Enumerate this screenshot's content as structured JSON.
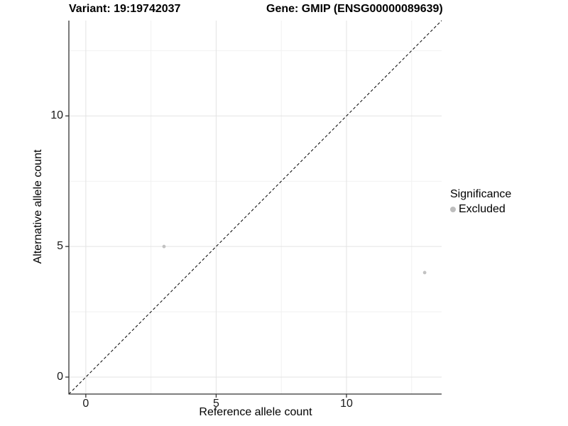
{
  "chart_data": {
    "type": "scatter",
    "title_left": "Variant: 19:19742037",
    "title_right": "Gene: GMIP (ENSG00000089639)",
    "xlabel": "Reference allele count",
    "ylabel": "Alternative allele count",
    "xlim": [
      -0.65,
      13.65
    ],
    "ylim": [
      -0.65,
      13.65
    ],
    "x_ticks": [
      0,
      5,
      10
    ],
    "y_ticks": [
      0,
      5,
      10
    ],
    "x_minor_ticks": [
      2.5,
      7.5,
      12.5
    ],
    "y_minor_ticks": [
      2.5,
      7.5,
      12.5
    ],
    "grid": "on",
    "points": [
      {
        "x": 3,
        "y": 5,
        "series": "Excluded"
      },
      {
        "x": 13,
        "y": 4,
        "series": "Excluded"
      }
    ],
    "identity_line": {
      "type": "dashed",
      "slope": 1,
      "intercept": 0
    },
    "legend": {
      "title": "Significance",
      "position": "right",
      "items": [
        {
          "label": "Excluded",
          "color": "#bdbdbd"
        }
      ]
    },
    "colors": {
      "point": "#c2c2c2",
      "grid_major": "#e3e3e3",
      "grid_minor": "#f1f1f1",
      "axis_line": "#333333",
      "tick_mark": "#333333",
      "identity_line": "#000000"
    }
  }
}
